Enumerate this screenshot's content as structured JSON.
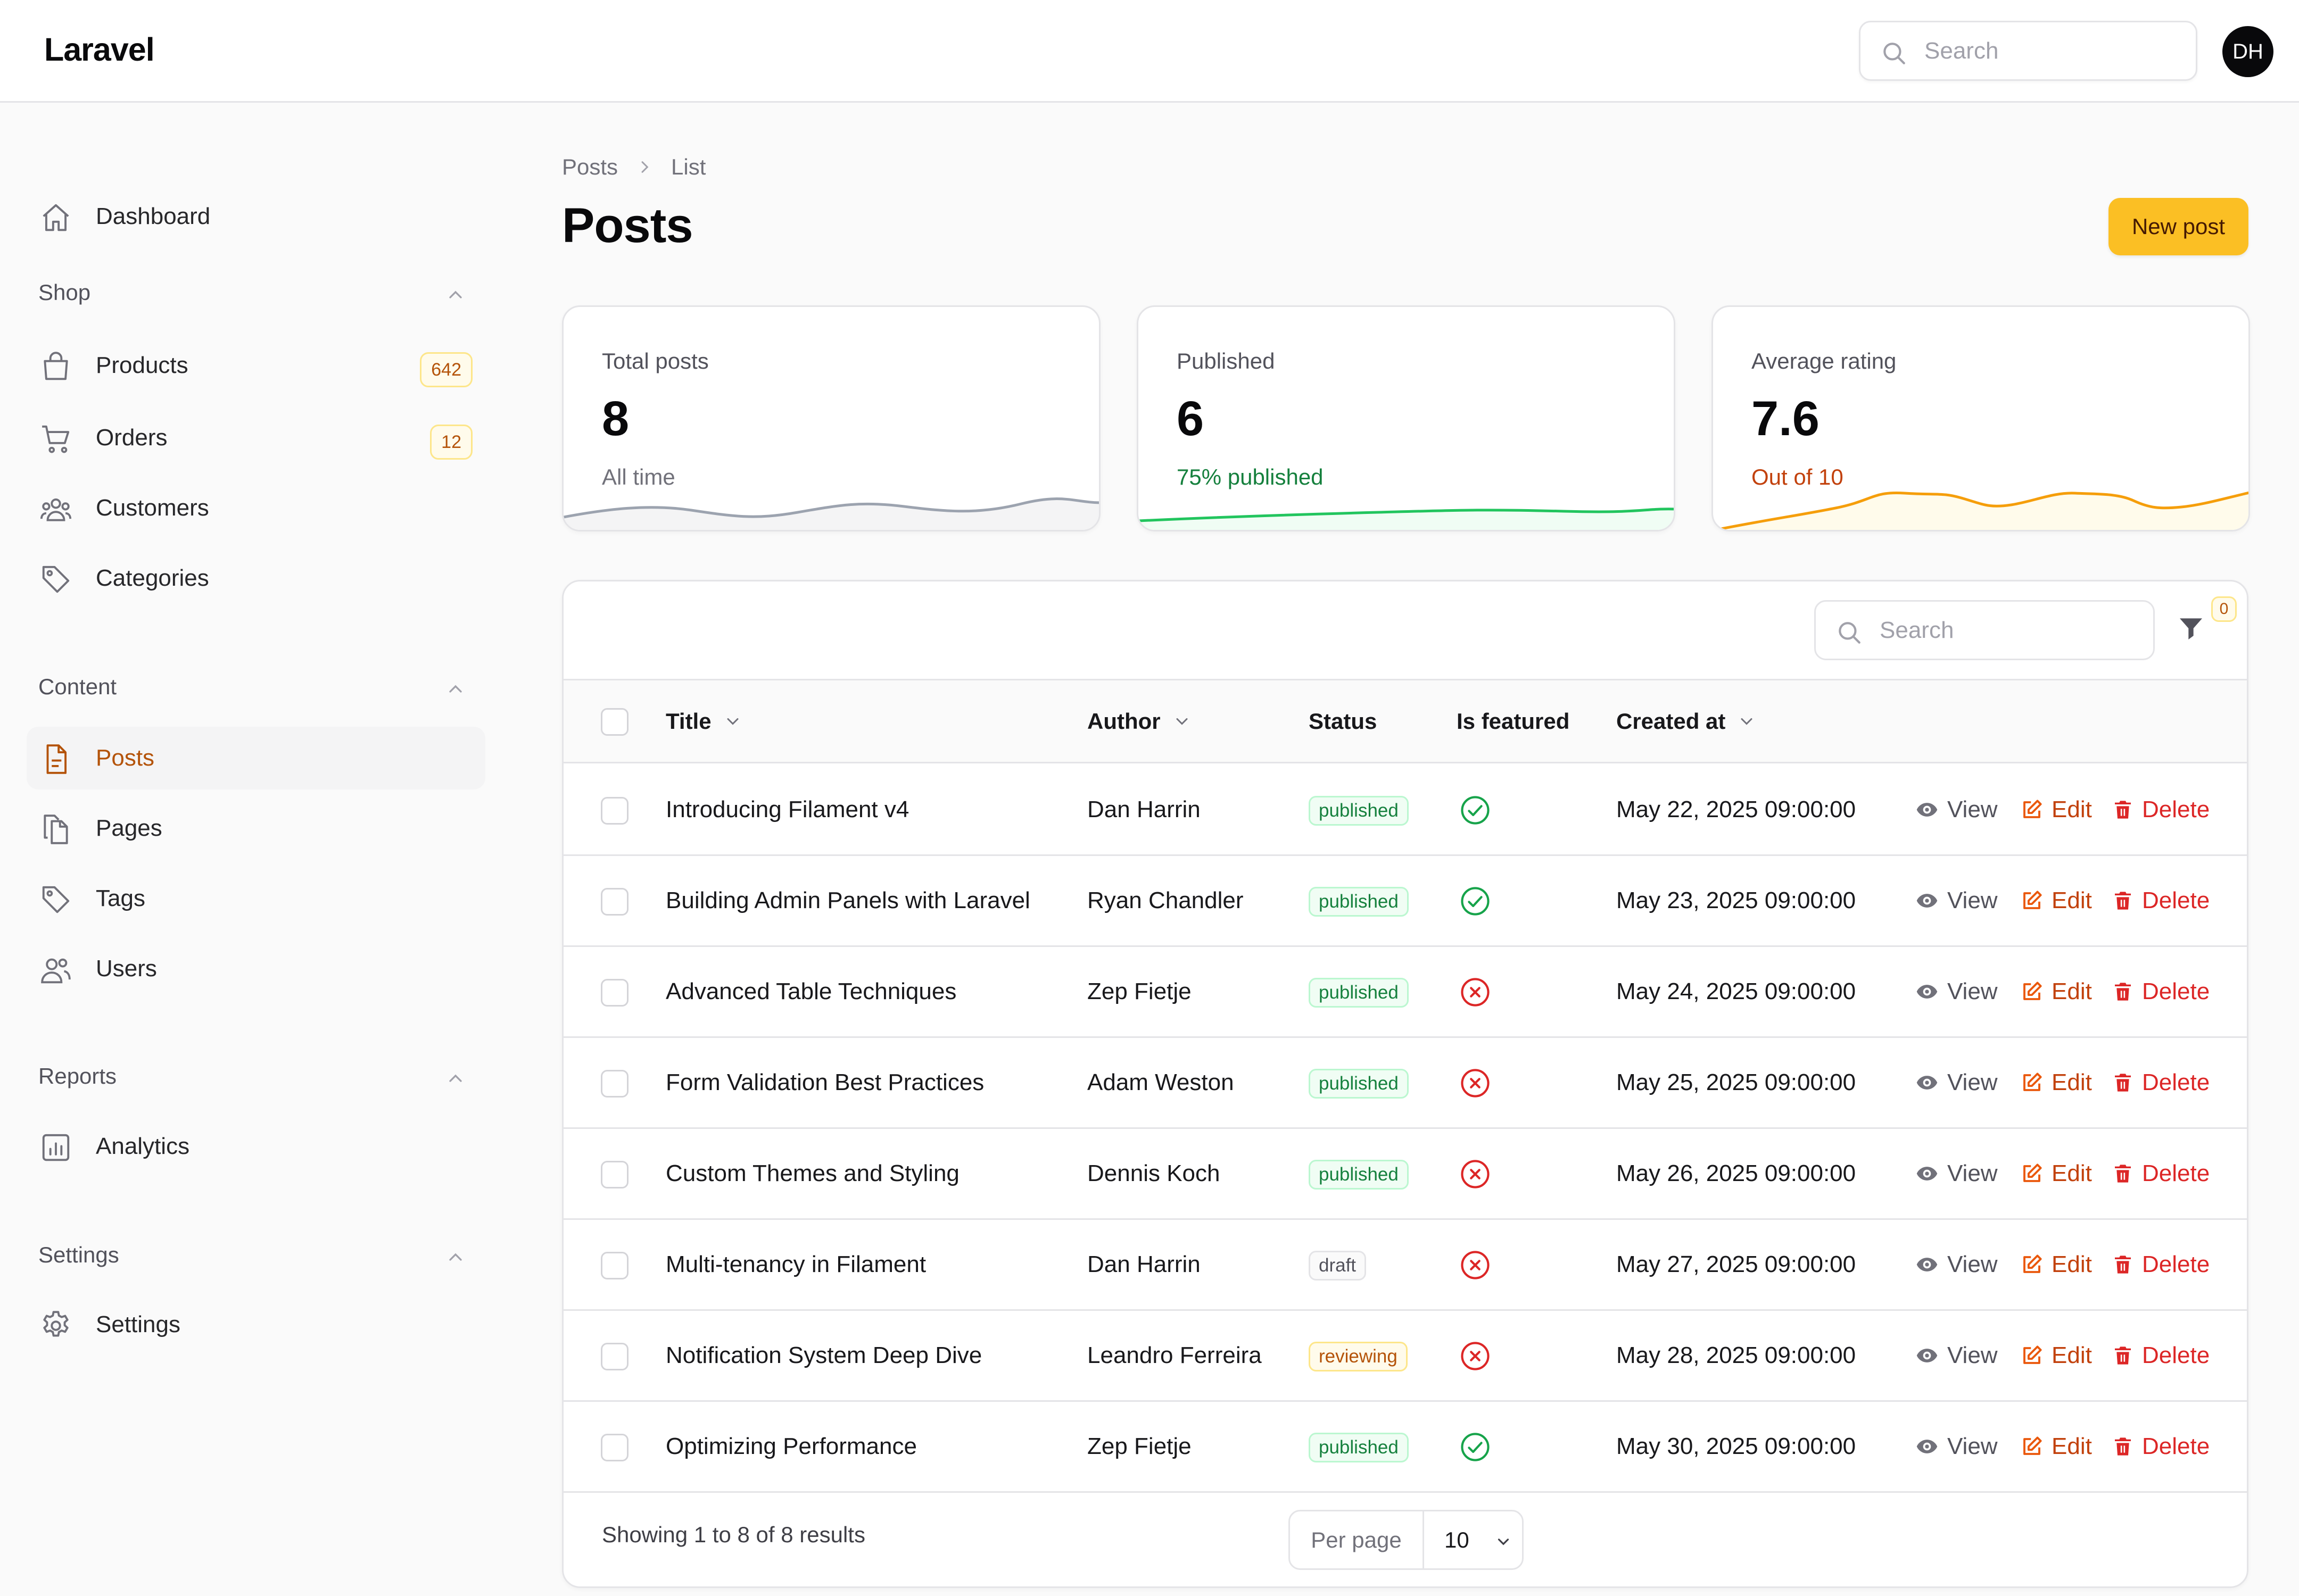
{
  "app": {
    "brand": "Laravel",
    "user_initials": "DH"
  },
  "header": {
    "search_placeholder": "Search"
  },
  "sidebar": {
    "dashboard": "Dashboard",
    "groups": [
      {
        "label": "Shop",
        "items": [
          {
            "label": "Products",
            "icon": "shopping-bag-icon",
            "badge": "642"
          },
          {
            "label": "Orders",
            "icon": "cart-icon",
            "badge": "12"
          },
          {
            "label": "Customers",
            "icon": "user-group-icon",
            "badge": ""
          },
          {
            "label": "Categories",
            "icon": "tag-icon",
            "badge": ""
          }
        ]
      },
      {
        "label": "Content",
        "items": [
          {
            "label": "Posts",
            "icon": "document-icon",
            "active": true
          },
          {
            "label": "Pages",
            "icon": "documents-icon"
          },
          {
            "label": "Tags",
            "icon": "tag-icon"
          },
          {
            "label": "Users",
            "icon": "users-icon"
          }
        ]
      },
      {
        "label": "Reports",
        "items": [
          {
            "label": "Analytics",
            "icon": "chart-bar-icon"
          }
        ]
      },
      {
        "label": "Settings",
        "items": [
          {
            "label": "Settings",
            "icon": "gear-icon"
          }
        ]
      }
    ]
  },
  "breadcrumb": {
    "parent": "Posts",
    "current": "List"
  },
  "page": {
    "title": "Posts",
    "new_button": "New post"
  },
  "stats": [
    {
      "label": "Total posts",
      "value": "8",
      "description": "All time",
      "color": "#9ca3af"
    },
    {
      "label": "Published",
      "value": "6",
      "description": "75% published",
      "color": "#22c55e"
    },
    {
      "label": "Average rating",
      "value": "7.6",
      "description": "Out of 10",
      "color": "#f59e0b"
    }
  ],
  "table": {
    "search_placeholder": "Search",
    "filter_count": "0",
    "columns": {
      "title": "Title",
      "author": "Author",
      "status": "Status",
      "featured": "Is featured",
      "created": "Created at"
    },
    "actions": {
      "view": "View",
      "edit": "Edit",
      "delete": "Delete"
    },
    "rows": [
      {
        "title": "Introducing Filament v4",
        "author": "Dan Harrin",
        "status": "published",
        "featured": true,
        "created": "May 22, 2025 09:00:00"
      },
      {
        "title": "Building Admin Panels with Laravel",
        "author": "Ryan Chandler",
        "status": "published",
        "featured": true,
        "created": "May 23, 2025 09:00:00"
      },
      {
        "title": "Advanced Table Techniques",
        "author": "Zep Fietje",
        "status": "published",
        "featured": false,
        "created": "May 24, 2025 09:00:00"
      },
      {
        "title": "Form Validation Best Practices",
        "author": "Adam Weston",
        "status": "published",
        "featured": false,
        "created": "May 25, 2025 09:00:00"
      },
      {
        "title": "Custom Themes and Styling",
        "author": "Dennis Koch",
        "status": "published",
        "featured": false,
        "created": "May 26, 2025 09:00:00"
      },
      {
        "title": "Multi-tenancy in Filament",
        "author": "Dan Harrin",
        "status": "draft",
        "featured": false,
        "created": "May 27, 2025 09:00:00"
      },
      {
        "title": "Notification System Deep Dive",
        "author": "Leandro Ferreira",
        "status": "reviewing",
        "featured": false,
        "created": "May 28, 2025 09:00:00"
      },
      {
        "title": "Optimizing Performance",
        "author": "Zep Fietje",
        "status": "published",
        "featured": true,
        "created": "May 30, 2025 09:00:00"
      }
    ],
    "footer": {
      "summary": "Showing 1 to 8 of 8 results",
      "per_page_label": "Per page",
      "per_page_value": "10"
    }
  }
}
